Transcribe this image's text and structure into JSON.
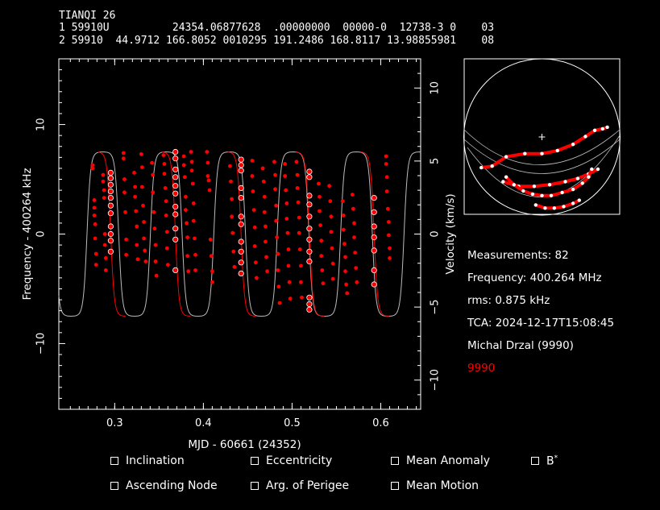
{
  "header": {
    "sat_name": "TIANQI 26",
    "tle_line1": "1 59910U          24354.06877628  .00000000  00000-0  12738-3 0    03",
    "tle_line2": "2 59910  44.9712 166.8052 0010295 191.2486 168.8117 13.98855981    08"
  },
  "info": {
    "measurements": "Measurements: 82",
    "frequency": "Frequency: 400.264 MHz",
    "rms": "rms: 0.875 kHz",
    "tca": "TCA: 2024-12-17T15:08:45",
    "observer": "Michal Drzal (9990)",
    "station": "9990"
  },
  "checkboxes": {
    "inclination": "Inclination",
    "eccentricity": "Eccentricity",
    "mean_anomaly": "Mean Anomaly",
    "bstar": "B",
    "bstar_sup": "*",
    "ascending_node": "Ascending Node",
    "arg_perigee": "Arg. of Perigee",
    "mean_motion": "Mean Motion"
  },
  "colors": {
    "background": "#000000",
    "points": "#ff0000",
    "fit_curve": "#ff0000",
    "model_curve": "#bbbbbb",
    "axes": "#ffffff"
  },
  "chart_data": {
    "type": "scatter",
    "xlabel": "MJD - 60661 (24352)",
    "ylabel": "Frequency - 400264 kHz",
    "y2label": "Velocity (km/s)",
    "xlim": [
      0.237,
      0.645
    ],
    "ylim": [
      -16,
      16
    ],
    "y2lim": [
      -12,
      12
    ],
    "xticks": [
      "0.3",
      "0.4",
      "0.5",
      "0.6"
    ],
    "xtick_values": [
      0.3,
      0.4,
      0.5,
      0.6
    ],
    "yticks": [
      "10",
      "0",
      "−10"
    ],
    "ytick_values": [
      10,
      0,
      -10
    ],
    "y2ticks": [
      "10",
      "5",
      "0",
      "−5",
      "−10"
    ],
    "y2tick_values": [
      10,
      5,
      0,
      -5,
      -10
    ],
    "model": {
      "amplitude_khz": 7.5,
      "period_d": 0.0715,
      "tca_x": 0.519
    },
    "fit_passes": [
      {
        "center": 0.2955,
        "x_range": [
          0.2815,
          0.3125
        ],
        "points": [
          [
            0.2955,
            5.6
          ],
          [
            0.2955,
            5.1
          ],
          [
            0.2955,
            4.5
          ],
          [
            0.2955,
            3.9
          ],
          [
            0.2955,
            3.3
          ],
          [
            0.2955,
            2.6
          ],
          [
            0.2955,
            1.9
          ],
          [
            0.2955,
            0.7
          ],
          [
            0.2955,
            0.0
          ],
          [
            0.2955,
            -0.6
          ],
          [
            0.2955,
            -1.6
          ]
        ]
      },
      {
        "center": 0.3685,
        "x_range": [
          0.3535,
          0.3855
        ],
        "points": [
          [
            0.3685,
            7.5
          ],
          [
            0.3685,
            6.9
          ],
          [
            0.3685,
            5.9
          ],
          [
            0.3685,
            5.2
          ],
          [
            0.3685,
            4.4
          ],
          [
            0.3685,
            3.7
          ],
          [
            0.3685,
            2.5
          ],
          [
            0.3685,
            1.8
          ],
          [
            0.3685,
            0.5
          ],
          [
            0.3685,
            -0.5
          ],
          [
            0.3685,
            -3.3
          ]
        ]
      },
      {
        "center": 0.4425,
        "x_range": [
          0.4275,
          0.4595
        ],
        "points": [
          [
            0.4425,
            6.8
          ],
          [
            0.4425,
            6.3
          ],
          [
            0.4425,
            5.8
          ],
          [
            0.4425,
            4.2
          ],
          [
            0.4425,
            3.3
          ],
          [
            0.4425,
            1.6
          ],
          [
            0.4425,
            0.9
          ],
          [
            0.4425,
            -0.7
          ],
          [
            0.4425,
            -1.6
          ],
          [
            0.4425,
            -2.6
          ],
          [
            0.4425,
            -3.6
          ]
        ]
      },
      {
        "center": 0.5195,
        "x_range": [
          0.5045,
          0.5365
        ],
        "points": [
          [
            0.5195,
            5.7
          ],
          [
            0.5195,
            5.2
          ],
          [
            0.5195,
            3.5
          ],
          [
            0.5195,
            2.7
          ],
          [
            0.5195,
            1.6
          ],
          [
            0.5195,
            0.5
          ],
          [
            0.5195,
            -0.5
          ],
          [
            0.5195,
            -1.6
          ],
          [
            0.5195,
            -2.5
          ],
          [
            0.5195,
            -5.8
          ],
          [
            0.5195,
            -6.4
          ],
          [
            0.5195,
            -6.9
          ]
        ]
      },
      {
        "center": 0.5925,
        "x_range": [
          0.5775,
          0.6095
        ],
        "points": [
          [
            0.5925,
            3.3
          ],
          [
            0.5925,
            2.0
          ],
          [
            0.5925,
            0.7
          ],
          [
            0.5925,
            -0.3
          ],
          [
            0.5925,
            -1.5
          ],
          [
            0.5925,
            -3.3
          ],
          [
            0.5925,
            -4.6
          ]
        ]
      }
    ],
    "scatter_points": [
      [
        0.275,
        6.3
      ],
      [
        0.275,
        6.0
      ],
      [
        0.277,
        3.1
      ],
      [
        0.277,
        2.4
      ],
      [
        0.277,
        1.7
      ],
      [
        0.278,
        0.9
      ],
      [
        0.278,
        -0.4
      ],
      [
        0.279,
        -1.8
      ],
      [
        0.279,
        -2.8
      ],
      [
        0.287,
        5.4
      ],
      [
        0.287,
        4.8
      ],
      [
        0.288,
        4.0
      ],
      [
        0.288,
        3.3
      ],
      [
        0.289,
        0.0
      ],
      [
        0.289,
        -1.0
      ],
      [
        0.29,
        -2.2
      ],
      [
        0.29,
        -3.3
      ],
      [
        0.31,
        7.4
      ],
      [
        0.31,
        6.9
      ],
      [
        0.311,
        5.0
      ],
      [
        0.311,
        3.8
      ],
      [
        0.312,
        2.0
      ],
      [
        0.313,
        -0.5
      ],
      [
        0.313,
        -1.9
      ],
      [
        0.322,
        5.6
      ],
      [
        0.323,
        4.3
      ],
      [
        0.323,
        3.4
      ],
      [
        0.324,
        2.1
      ],
      [
        0.325,
        0.7
      ],
      [
        0.325,
        -1.0
      ],
      [
        0.326,
        -2.3
      ],
      [
        0.33,
        7.3
      ],
      [
        0.331,
        6.1
      ],
      [
        0.331,
        4.3
      ],
      [
        0.332,
        2.6
      ],
      [
        0.333,
        1.1
      ],
      [
        0.333,
        -0.4
      ],
      [
        0.334,
        -1.5
      ],
      [
        0.335,
        -2.5
      ],
      [
        0.342,
        6.5
      ],
      [
        0.343,
        5.4
      ],
      [
        0.343,
        3.8
      ],
      [
        0.344,
        2.0
      ],
      [
        0.345,
        0.5
      ],
      [
        0.346,
        -1.0
      ],
      [
        0.346,
        -2.5
      ],
      [
        0.347,
        -3.8
      ],
      [
        0.355,
        7.2
      ],
      [
        0.356,
        6.4
      ],
      [
        0.356,
        5.5
      ],
      [
        0.357,
        4.2
      ],
      [
        0.358,
        3.0
      ],
      [
        0.358,
        1.7
      ],
      [
        0.359,
        0.2
      ],
      [
        0.359,
        -1.3
      ],
      [
        0.36,
        -2.8
      ],
      [
        0.378,
        7.1
      ],
      [
        0.378,
        6.3
      ],
      [
        0.379,
        5.2
      ],
      [
        0.38,
        3.4
      ],
      [
        0.38,
        2.2
      ],
      [
        0.381,
        1.0
      ],
      [
        0.382,
        -0.3
      ],
      [
        0.382,
        -2.0
      ],
      [
        0.383,
        -3.4
      ],
      [
        0.386,
        7.5
      ],
      [
        0.387,
        6.6
      ],
      [
        0.387,
        5.8
      ],
      [
        0.388,
        4.6
      ],
      [
        0.389,
        2.8
      ],
      [
        0.389,
        1.2
      ],
      [
        0.39,
        -0.4
      ],
      [
        0.391,
        -1.9
      ],
      [
        0.391,
        -3.3
      ],
      [
        0.404,
        7.5
      ],
      [
        0.405,
        6.5
      ],
      [
        0.405,
        5.3
      ],
      [
        0.406,
        4.9
      ],
      [
        0.407,
        4.0
      ],
      [
        0.408,
        -0.5
      ],
      [
        0.409,
        -2.0
      ],
      [
        0.41,
        -3.4
      ],
      [
        0.41,
        -4.4
      ],
      [
        0.43,
        6.2
      ],
      [
        0.431,
        4.8
      ],
      [
        0.432,
        3.2
      ],
      [
        0.432,
        1.6
      ],
      [
        0.433,
        0.1
      ],
      [
        0.434,
        -1.6
      ],
      [
        0.435,
        -3.0
      ],
      [
        0.455,
        6.7
      ],
      [
        0.455,
        5.3
      ],
      [
        0.456,
        3.9
      ],
      [
        0.457,
        2.2
      ],
      [
        0.458,
        0.6
      ],
      [
        0.458,
        -1.1
      ],
      [
        0.459,
        -2.6
      ],
      [
        0.46,
        -4.0
      ],
      [
        0.467,
        6.0
      ],
      [
        0.468,
        4.8
      ],
      [
        0.469,
        3.4
      ],
      [
        0.469,
        2.0
      ],
      [
        0.47,
        0.7
      ],
      [
        0.47,
        -0.7
      ],
      [
        0.471,
        -2.1
      ],
      [
        0.472,
        -3.4
      ],
      [
        0.48,
        6.6
      ],
      [
        0.481,
        5.4
      ],
      [
        0.481,
        4.1
      ],
      [
        0.482,
        2.6
      ],
      [
        0.482,
        1.2
      ],
      [
        0.483,
        -0.3
      ],
      [
        0.484,
        -1.8
      ],
      [
        0.484,
        -3.3
      ],
      [
        0.485,
        -4.8
      ],
      [
        0.486,
        -6.3
      ],
      [
        0.492,
        6.4
      ],
      [
        0.492,
        5.3
      ],
      [
        0.493,
        4.0
      ],
      [
        0.494,
        2.8
      ],
      [
        0.494,
        1.4
      ],
      [
        0.495,
        0.1
      ],
      [
        0.496,
        -1.4
      ],
      [
        0.496,
        -2.9
      ],
      [
        0.497,
        -4.4
      ],
      [
        0.498,
        -5.9
      ],
      [
        0.505,
        6.6
      ],
      [
        0.506,
        5.4
      ],
      [
        0.506,
        4.2
      ],
      [
        0.507,
        2.9
      ],
      [
        0.508,
        1.5
      ],
      [
        0.508,
        0.1
      ],
      [
        0.509,
        -1.4
      ],
      [
        0.51,
        -2.9
      ],
      [
        0.51,
        -4.4
      ],
      [
        0.511,
        -5.8
      ],
      [
        0.53,
        4.6
      ],
      [
        0.531,
        3.4
      ],
      [
        0.531,
        2.1
      ],
      [
        0.532,
        0.8
      ],
      [
        0.533,
        -0.6
      ],
      [
        0.533,
        -2.0
      ],
      [
        0.534,
        -3.3
      ],
      [
        0.535,
        -4.5
      ],
      [
        0.542,
        4.4
      ],
      [
        0.543,
        3.0
      ],
      [
        0.544,
        1.6
      ],
      [
        0.544,
        0.2
      ],
      [
        0.545,
        -1.3
      ],
      [
        0.546,
        -2.7
      ],
      [
        0.546,
        -4.1
      ],
      [
        0.557,
        3.0
      ],
      [
        0.558,
        1.7
      ],
      [
        0.558,
        0.4
      ],
      [
        0.559,
        -0.9
      ],
      [
        0.56,
        -2.1
      ],
      [
        0.56,
        -3.4
      ],
      [
        0.561,
        -4.6
      ],
      [
        0.562,
        -5.4
      ],
      [
        0.568,
        3.6
      ],
      [
        0.569,
        2.3
      ],
      [
        0.57,
        1.0
      ],
      [
        0.57,
        -0.3
      ],
      [
        0.571,
        -1.7
      ],
      [
        0.572,
        -3.1
      ],
      [
        0.573,
        -4.4
      ],
      [
        0.606,
        7.1
      ],
      [
        0.606,
        6.4
      ],
      [
        0.607,
        5.2
      ],
      [
        0.607,
        3.9
      ],
      [
        0.608,
        2.3
      ],
      [
        0.609,
        1.1
      ],
      [
        0.609,
        -0.1
      ],
      [
        0.61,
        -1.3
      ],
      [
        0.61,
        -2.2
      ]
    ]
  },
  "sky_plot": {
    "title": "",
    "tracks": [
      {
        "points": [
          [
            0.11,
            0.7
          ],
          [
            0.18,
            0.69
          ],
          [
            0.27,
            0.63
          ],
          [
            0.39,
            0.61
          ],
          [
            0.5,
            0.61
          ],
          [
            0.6,
            0.59
          ],
          [
            0.7,
            0.55
          ],
          [
            0.78,
            0.5
          ],
          [
            0.84,
            0.46
          ],
          [
            0.89,
            0.45
          ],
          [
            0.92,
            0.44
          ]
        ]
      },
      {
        "points": [
          [
            0.25,
            0.79
          ],
          [
            0.35,
            0.82
          ],
          [
            0.45,
            0.82
          ],
          [
            0.55,
            0.81
          ],
          [
            0.65,
            0.79
          ],
          [
            0.73,
            0.77
          ],
          [
            0.8,
            0.74
          ],
          [
            0.86,
            0.71
          ]
        ]
      },
      {
        "points": [
          [
            0.27,
            0.76
          ],
          [
            0.32,
            0.81
          ],
          [
            0.38,
            0.85
          ],
          [
            0.44,
            0.87
          ],
          [
            0.5,
            0.88
          ],
          [
            0.56,
            0.88
          ],
          [
            0.63,
            0.86
          ],
          [
            0.7,
            0.84
          ],
          [
            0.76,
            0.8
          ],
          [
            0.8,
            0.76
          ],
          [
            0.82,
            0.71
          ]
        ]
      },
      {
        "points": [
          [
            0.46,
            0.94
          ],
          [
            0.52,
            0.96
          ],
          [
            0.58,
            0.96
          ],
          [
            0.64,
            0.95
          ],
          [
            0.7,
            0.93
          ],
          [
            0.74,
            0.91
          ]
        ]
      }
    ]
  }
}
